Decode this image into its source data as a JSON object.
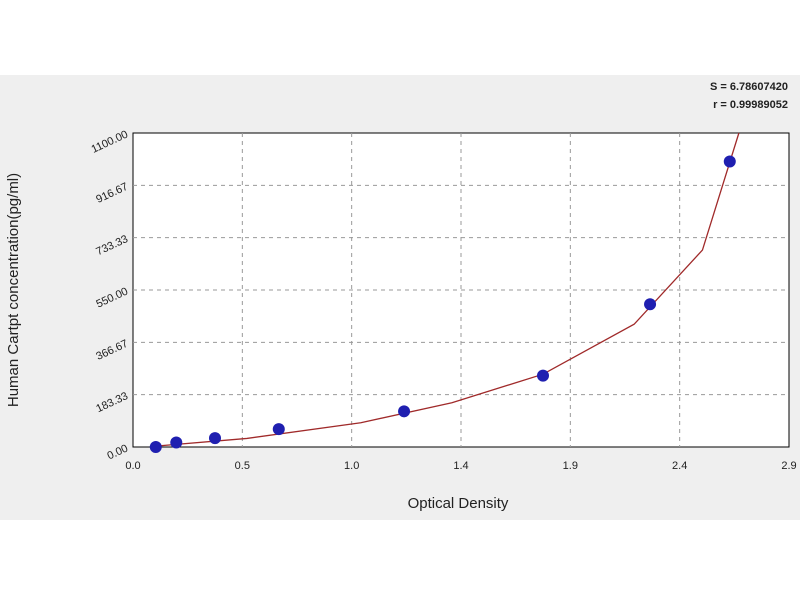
{
  "chart_data": {
    "type": "scatter",
    "xlabel": "Optical Density",
    "ylabel": "Human Cartpt concentration(pg/ml)",
    "annotations": [
      "S = 6.78607420",
      "r = 0.99989052"
    ],
    "xlim": [
      0,
      2.88
    ],
    "ylim": [
      0,
      1100
    ],
    "xticks": [
      {
        "value": 0,
        "label": "0.0"
      },
      {
        "value": 0.48,
        "label": "0.5"
      },
      {
        "value": 0.96,
        "label": "1.0"
      },
      {
        "value": 1.44,
        "label": "1.4"
      },
      {
        "value": 1.92,
        "label": "1.9"
      },
      {
        "value": 2.4,
        "label": "2.4"
      },
      {
        "value": 2.88,
        "label": "2.9"
      }
    ],
    "yticks": [
      {
        "value": 0,
        "label": "0.00"
      },
      183.33,
      366.67,
      {
        "value": 550,
        "label": "550.00"
      },
      733.33,
      916.67,
      {
        "value": 1100,
        "label": "1100.00"
      }
    ],
    "grid": true,
    "series": [
      {
        "type": "line",
        "color": "#a02a2a",
        "x": [
          0.1,
          0.5,
          1.0,
          1.4,
          1.8,
          2.2,
          2.5,
          2.66
        ],
        "values": [
          3,
          30,
          85,
          155,
          255,
          430,
          690,
          1100
        ]
      },
      {
        "type": "scatter",
        "color": "#1f1fb0",
        "x": [
          0.1,
          0.19,
          0.36,
          0.64,
          1.19,
          1.8,
          2.27,
          2.62
        ],
        "values": [
          0,
          15.6,
          31.25,
          62.5,
          125,
          250,
          500,
          1000
        ]
      }
    ]
  }
}
